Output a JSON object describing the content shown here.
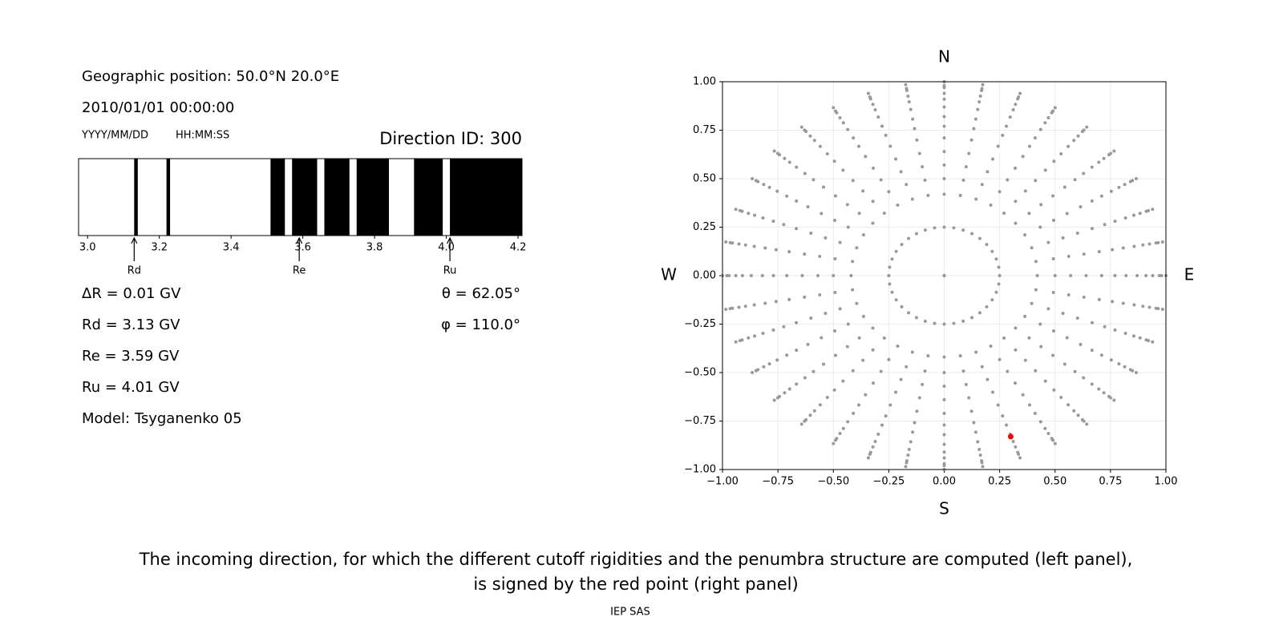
{
  "info": {
    "position": "Geographic position: 50.0°N 20.0°E",
    "datetime": "2010/01/01 00:00:00",
    "date_format": "YYYY/MM/DD",
    "time_format": "HH:MM:SS",
    "direction": "Direction ID: 300",
    "lines": [
      "ΔR = 0.01 GV",
      "Rd = 3.13 GV",
      "Re = 3.59 GV",
      "Ru = 4.01 GV",
      "Model: Tsyganenko 05"
    ],
    "theta": "θ = 62.05°",
    "phi": "φ = 110.0°"
  },
  "chart_data": [
    {
      "type": "penumbra",
      "xlim": [
        2.975,
        4.211
      ],
      "xticks": [
        {
          "value": 3,
          "label": "3.0"
        },
        3.2,
        3.4,
        3.6,
        3.8,
        {
          "value": 4,
          "label": "4.0"
        },
        4.2
      ],
      "color": "#000000",
      "forbidden": [
        [
          3.13,
          3.14
        ],
        [
          3.22,
          3.23
        ],
        [
          3.51,
          3.55
        ],
        [
          3.57,
          3.64
        ],
        [
          3.66,
          3.73
        ],
        [
          3.75,
          3.84
        ],
        [
          3.91,
          3.99
        ],
        [
          4.01,
          4.211
        ]
      ],
      "markers": [
        {
          "label": "Rd",
          "value": 3.13
        },
        {
          "label": "Re",
          "value": 3.59
        },
        {
          "label": "Ru",
          "value": 4.01
        }
      ]
    },
    {
      "type": "scatter",
      "compass": {
        "north": "N",
        "south": "S",
        "west": "W",
        "east": "E"
      },
      "xlim": [
        -1,
        1
      ],
      "ylim": [
        -1,
        1
      ],
      "xticks": [
        {
          "value": -1,
          "label": "−1.00"
        },
        {
          "value": -0.75,
          "label": "−0.75"
        },
        {
          "value": -0.5,
          "label": "−0.50"
        },
        {
          "value": -0.25,
          "label": "−0.25"
        },
        {
          "value": 0,
          "label": "0.00"
        },
        {
          "value": 0.25,
          "label": "0.25"
        },
        {
          "value": 0.5,
          "label": "0.50"
        },
        {
          "value": 0.75,
          "label": "0.75"
        },
        {
          "value": 1,
          "label": "1.00"
        }
      ],
      "yticks": [
        {
          "value": -1,
          "label": "−1.00"
        },
        {
          "value": -0.75,
          "label": "−0.75"
        },
        {
          "value": -0.5,
          "label": "−0.50"
        },
        {
          "value": -0.25,
          "label": "−0.25"
        },
        {
          "value": 0,
          "label": "0.00"
        },
        {
          "value": 0.25,
          "label": "0.25"
        },
        {
          "value": 0.5,
          "label": "0.50"
        },
        {
          "value": 0.75,
          "label": "0.75"
        },
        {
          "value": 1,
          "label": "1.00"
        }
      ],
      "grid": true,
      "color": "#999999",
      "azimuths": [
        0,
        10,
        20,
        30,
        40,
        50,
        60,
        70,
        80,
        90,
        100,
        110,
        120,
        130,
        140,
        150,
        160,
        170,
        180,
        190,
        200,
        210,
        220,
        230,
        240,
        250,
        260,
        270,
        280,
        290,
        300,
        310,
        320,
        330,
        340,
        350
      ],
      "radii": [
        0,
        0.25,
        0.42,
        0.5,
        0.57,
        0.64,
        0.71,
        0.77,
        0.82,
        0.87,
        0.91,
        0.94,
        0.97,
        0.98,
        1.0
      ],
      "highlight": {
        "x": 0.3,
        "y": -0.83,
        "color": "#ff0000"
      }
    }
  ],
  "caption": [
    "The incoming direction, for which the different cutoff rigidities and the penumbra structure are computed (left panel),",
    "is signed by the red point (right panel)"
  ],
  "footer": "IEP SAS"
}
